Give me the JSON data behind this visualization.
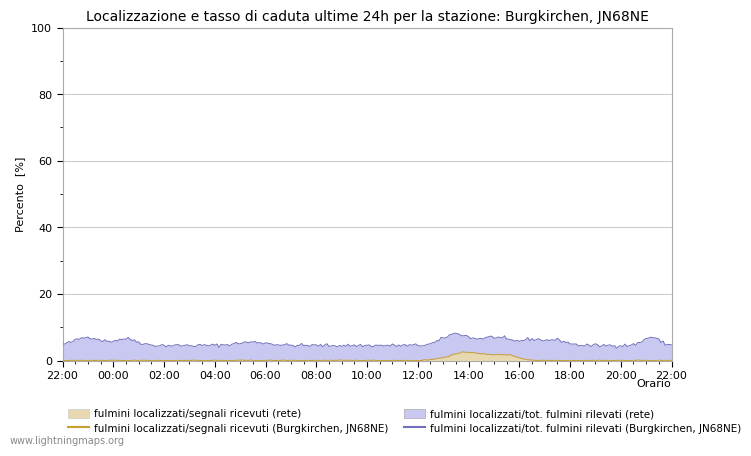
{
  "title": "Localizzazione e tasso di caduta ultime 24h per la stazione: Burgkirchen, JN68NE",
  "ylabel": "Percento  [%]",
  "xlabel_right": "Orario",
  "watermark": "www.lightningmaps.org",
  "ylim": [
    0,
    100
  ],
  "yticks": [
    0,
    20,
    40,
    60,
    80,
    100
  ],
  "yticks_minor": [
    10,
    30,
    50,
    70,
    90
  ],
  "xtick_labels": [
    "22:00",
    "00:00",
    "02:00",
    "04:00",
    "06:00",
    "08:00",
    "10:00",
    "12:00",
    "14:00",
    "16:00",
    "18:00",
    "20:00",
    "22:00"
  ],
  "fill_rete_color": "#c8c8f0",
  "fill_station_color": "#e8d8b0",
  "line_rete_color": "#7070bb",
  "line_station_color": "#c8a030",
  "legend_labels": [
    "fulmini localizzati/segnali ricevuti (rete)",
    "fulmini localizzati/segnali ricevuti (Burgkirchen, JN68NE)",
    "fulmini localizzati/tot. fulmini rilevati (rete)",
    "fulmini localizzati/tot. fulmini rilevati (Burgkirchen, JN68NE)"
  ],
  "background_color": "#ffffff",
  "grid_color": "#cccccc",
  "title_fontsize": 10,
  "axis_fontsize": 8,
  "tick_fontsize": 8,
  "legend_fontsize": 7.5
}
